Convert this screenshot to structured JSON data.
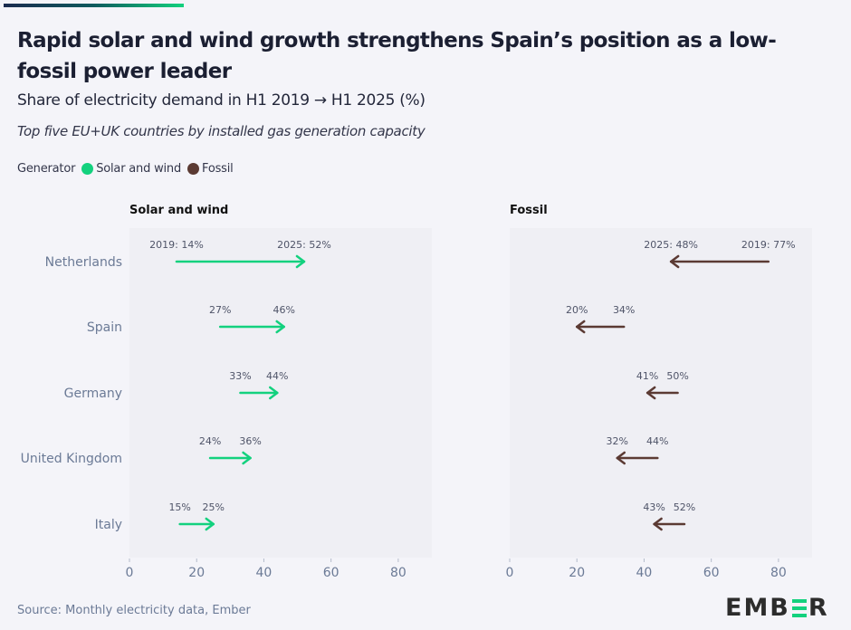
{
  "header": {
    "title": "Rapid solar and wind growth strengthens Spain’s position as a low-fossil power leader",
    "subtitle": "Share of electricity demand in H1 2019 → H1 2025 (%)",
    "note": "Top five EU+UK countries by installed gas generation capacity"
  },
  "legend": {
    "title": "Generator",
    "items": [
      {
        "label": "Solar and wind",
        "color": "#13d17e"
      },
      {
        "label": "Fossil",
        "color": "#5b3a33"
      }
    ]
  },
  "footer": {
    "source": "Source: Monthly electricity data, Ember",
    "logo_left": "EMB",
    "logo_right": "R"
  },
  "chart_data": [
    {
      "type": "arrow-dumbbell",
      "title": "Solar and wind",
      "color": "#13d17e",
      "categories": [
        "Netherlands",
        "Spain",
        "Germany",
        "United Kingdom",
        "Italy"
      ],
      "series": [
        {
          "name": "H1 2019",
          "values": [
            14,
            27,
            33,
            24,
            15
          ]
        },
        {
          "name": "H1 2025",
          "values": [
            52,
            46,
            44,
            36,
            25
          ]
        }
      ],
      "labels": {
        "start": [
          "2019: 14%",
          "27%",
          "33%",
          "24%",
          "15%"
        ],
        "end": [
          "2025: 52%",
          "46%",
          "44%",
          "36%",
          "25%"
        ]
      },
      "xlim": [
        0,
        90
      ],
      "xticks": [
        0,
        20,
        40,
        60,
        80
      ],
      "xlabel": "",
      "ylabel": ""
    },
    {
      "type": "arrow-dumbbell",
      "title": "Fossil",
      "color": "#5b3a33",
      "categories": [
        "Netherlands",
        "Spain",
        "Germany",
        "United Kingdom",
        "Italy"
      ],
      "series": [
        {
          "name": "H1 2019",
          "values": [
            77,
            34,
            50,
            44,
            52
          ]
        },
        {
          "name": "H1 2025",
          "values": [
            48,
            20,
            41,
            32,
            43
          ]
        }
      ],
      "labels": {
        "start": [
          "2019: 77%",
          "34%",
          "50%",
          "44%",
          "52%"
        ],
        "end": [
          "2025: 48%",
          "20%",
          "41%",
          "32%",
          "43%"
        ]
      },
      "xlim": [
        0,
        90
      ],
      "xticks": [
        0,
        20,
        40,
        60,
        80
      ],
      "xlabel": "",
      "ylabel": ""
    }
  ]
}
